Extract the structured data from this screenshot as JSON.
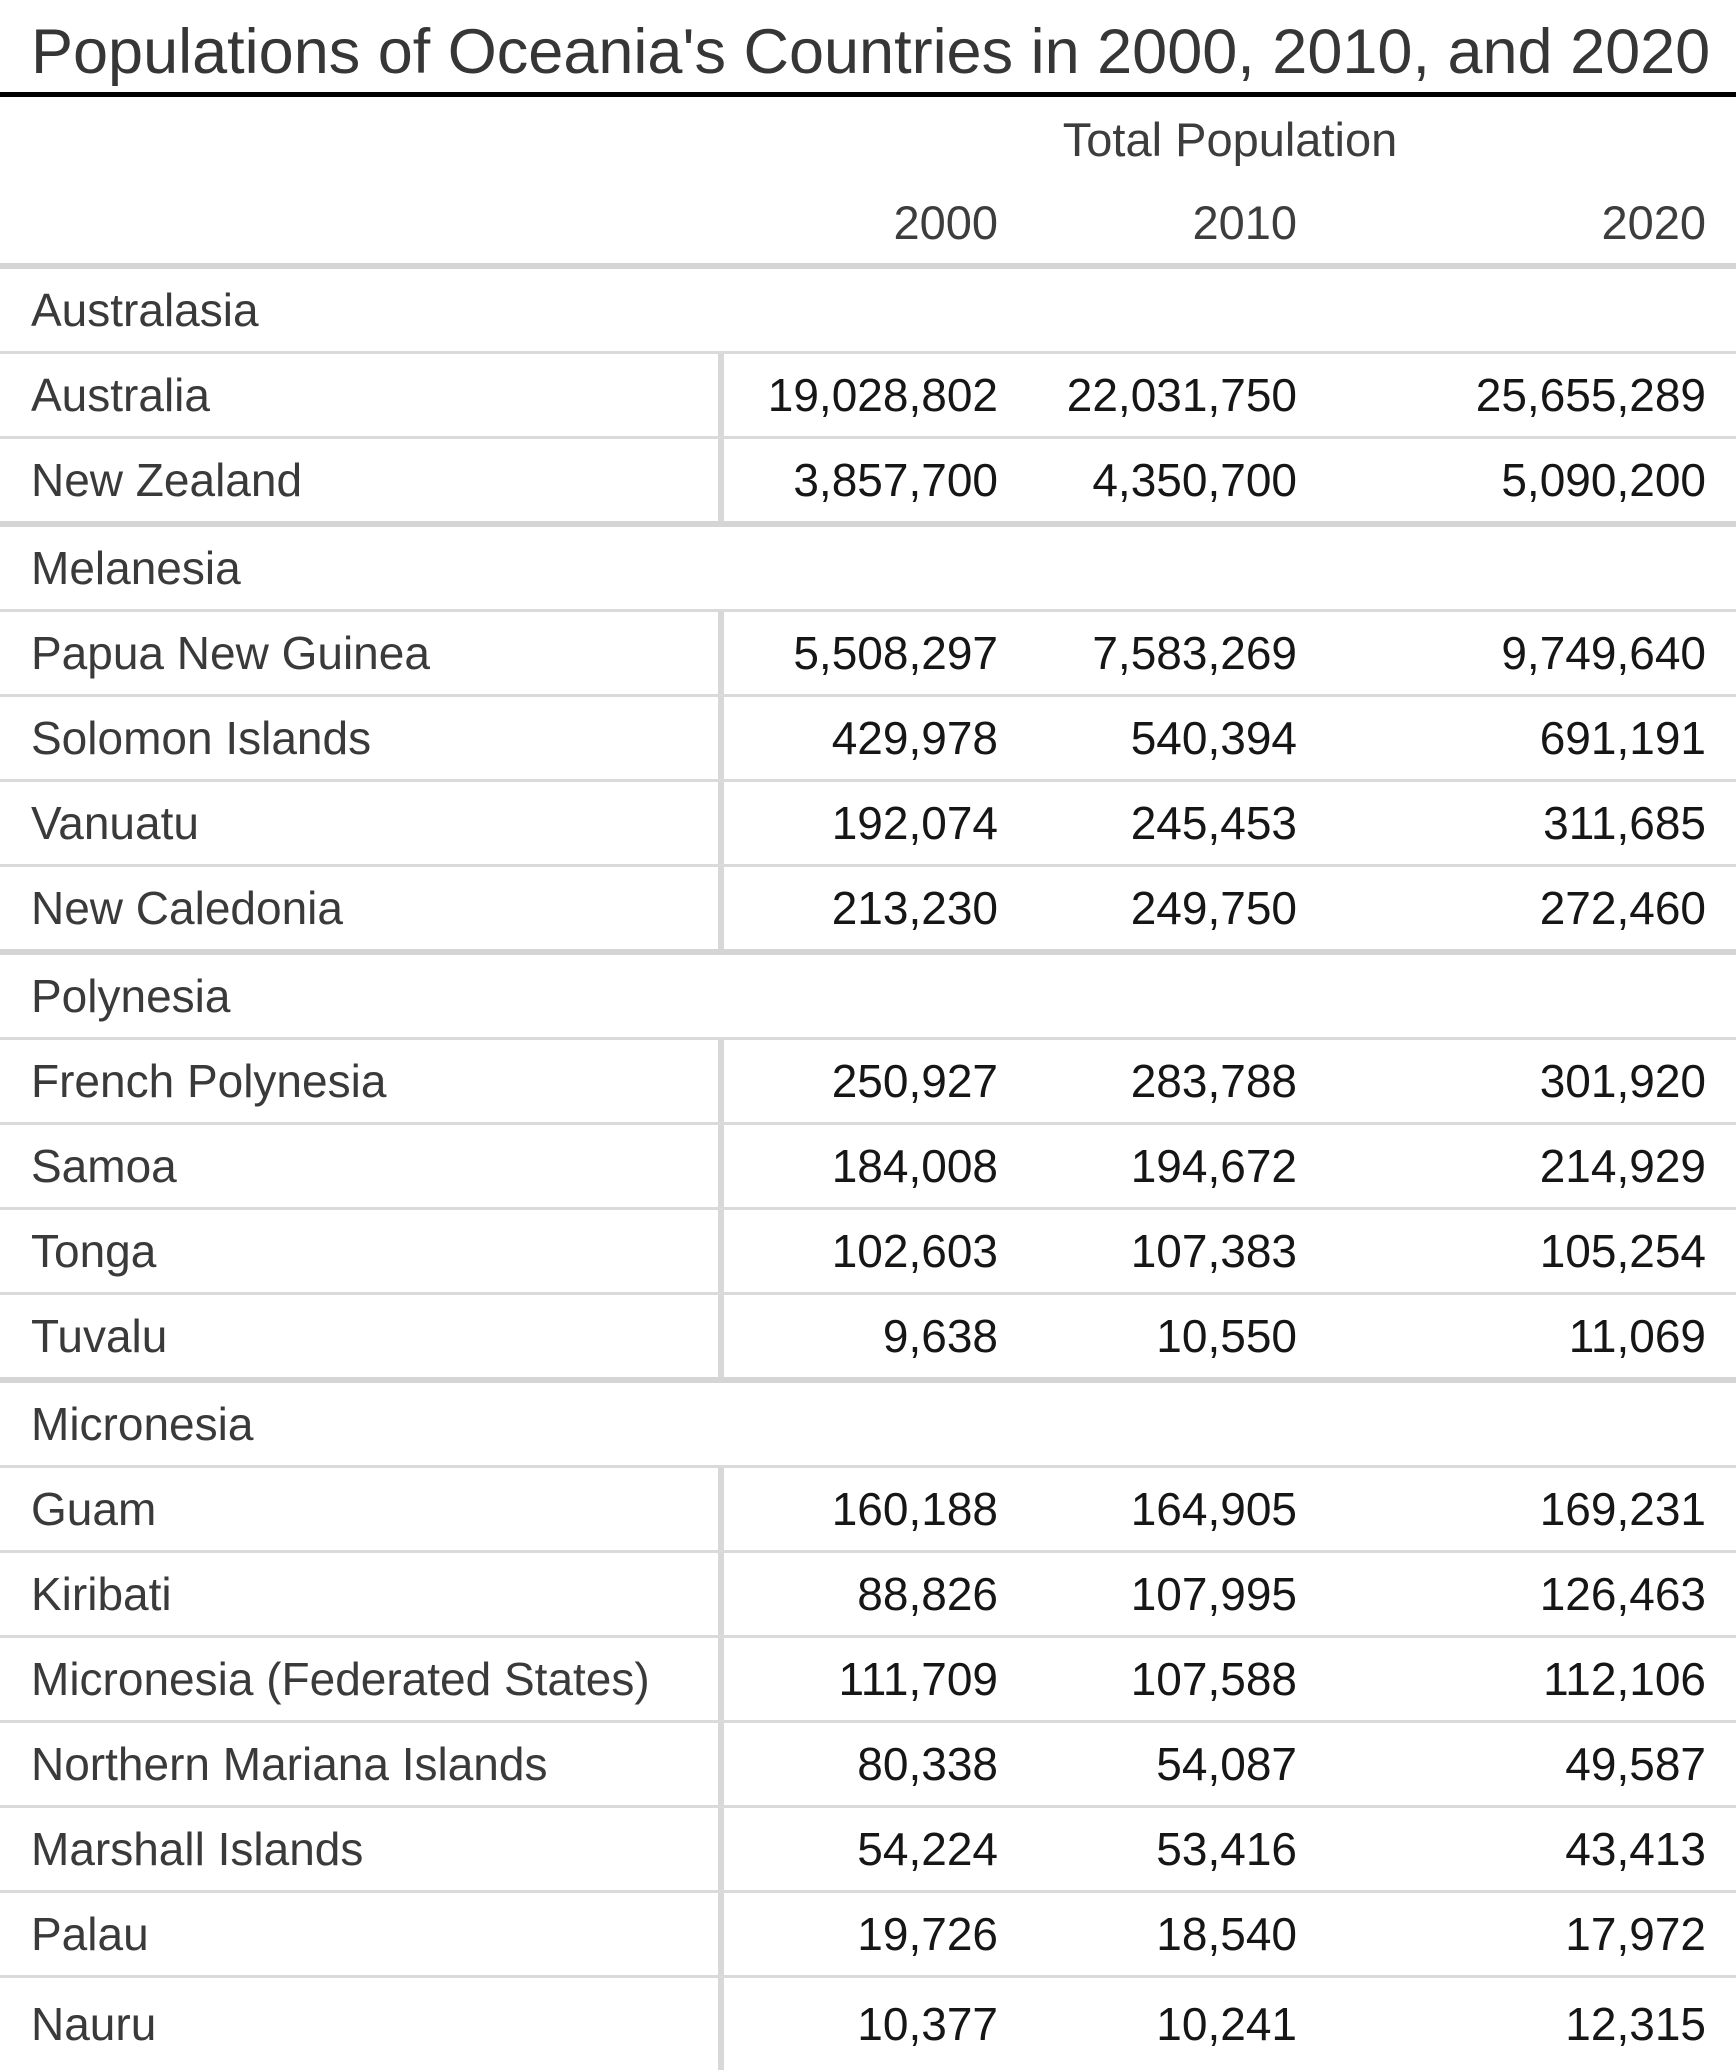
{
  "title": "Populations of Oceania's Countries in 2000, 2010, and 2020",
  "table": {
    "group_header": "Total Population",
    "years": [
      "2000",
      "2010",
      "2020"
    ],
    "sections": [
      {
        "name": "Australasia",
        "rows": [
          {
            "country": "Australia",
            "values": [
              "19,028,802",
              "22,031,750",
              "25,655,289"
            ]
          },
          {
            "country": "New Zealand",
            "values": [
              "3,857,700",
              "4,350,700",
              "5,090,200"
            ]
          }
        ]
      },
      {
        "name": "Melanesia",
        "rows": [
          {
            "country": "Papua New Guinea",
            "values": [
              "5,508,297",
              "7,583,269",
              "9,749,640"
            ]
          },
          {
            "country": "Solomon Islands",
            "values": [
              "429,978",
              "540,394",
              "691,191"
            ]
          },
          {
            "country": "Vanuatu",
            "values": [
              "192,074",
              "245,453",
              "311,685"
            ]
          },
          {
            "country": "New Caledonia",
            "values": [
              "213,230",
              "249,750",
              "272,460"
            ]
          }
        ]
      },
      {
        "name": "Polynesia",
        "rows": [
          {
            "country": "French Polynesia",
            "values": [
              "250,927",
              "283,788",
              "301,920"
            ]
          },
          {
            "country": "Samoa",
            "values": [
              "184,008",
              "194,672",
              "214,929"
            ]
          },
          {
            "country": "Tonga",
            "values": [
              "102,603",
              "107,383",
              "105,254"
            ]
          },
          {
            "country": "Tuvalu",
            "values": [
              "9,638",
              "10,550",
              "11,069"
            ]
          }
        ]
      },
      {
        "name": "Micronesia",
        "rows": [
          {
            "country": "Guam",
            "values": [
              "160,188",
              "164,905",
              "169,231"
            ]
          },
          {
            "country": "Kiribati",
            "values": [
              "88,826",
              "107,995",
              "126,463"
            ]
          },
          {
            "country": "Micronesia (Federated States)",
            "values": [
              "111,709",
              "107,588",
              "112,106"
            ]
          },
          {
            "country": "Northern Mariana Islands",
            "values": [
              "80,338",
              "54,087",
              "49,587"
            ]
          },
          {
            "country": "Marshall Islands",
            "values": [
              "54,224",
              "53,416",
              "43,413"
            ]
          },
          {
            "country": "Palau",
            "values": [
              "19,726",
              "18,540",
              "17,972"
            ]
          },
          {
            "country": "Nauru",
            "values": [
              "10,377",
              "10,241",
              "12,315"
            ]
          }
        ]
      }
    ]
  },
  "colors": {
    "label_text": "#3a3a3a",
    "number_text": "#161616",
    "header_text": "#3d3d3d",
    "title_rule": "#000000",
    "section_band": "#d5d5d5",
    "row_line": "#dadada",
    "column_divider": "#d8d8d8",
    "background": "#ffffff"
  },
  "chart_data": {
    "type": "table",
    "title": "Populations of Oceania's Countries in 2000, 2010, and 2020",
    "column_group": "Total Population",
    "columns": [
      "2000",
      "2010",
      "2020"
    ],
    "row_groups": [
      {
        "group": "Australasia",
        "rows": [
          {
            "label": "Australia",
            "values": [
              19028802,
              22031750,
              25655289
            ]
          },
          {
            "label": "New Zealand",
            "values": [
              3857700,
              4350700,
              5090200
            ]
          }
        ]
      },
      {
        "group": "Melanesia",
        "rows": [
          {
            "label": "Papua New Guinea",
            "values": [
              5508297,
              7583269,
              9749640
            ]
          },
          {
            "label": "Solomon Islands",
            "values": [
              429978,
              540394,
              691191
            ]
          },
          {
            "label": "Vanuatu",
            "values": [
              192074,
              245453,
              311685
            ]
          },
          {
            "label": "New Caledonia",
            "values": [
              213230,
              249750,
              272460
            ]
          }
        ]
      },
      {
        "group": "Polynesia",
        "rows": [
          {
            "label": "French Polynesia",
            "values": [
              250927,
              283788,
              301920
            ]
          },
          {
            "label": "Samoa",
            "values": [
              184008,
              194672,
              214929
            ]
          },
          {
            "label": "Tonga",
            "values": [
              102603,
              107383,
              105254
            ]
          },
          {
            "label": "Tuvalu",
            "values": [
              9638,
              10550,
              11069
            ]
          }
        ]
      },
      {
        "group": "Micronesia",
        "rows": [
          {
            "label": "Guam",
            "values": [
              160188,
              164905,
              169231
            ]
          },
          {
            "label": "Kiribati",
            "values": [
              88826,
              107995,
              126463
            ]
          },
          {
            "label": "Micronesia (Federated States)",
            "values": [
              111709,
              107588,
              112106
            ]
          },
          {
            "label": "Northern Mariana Islands",
            "values": [
              80338,
              54087,
              49587
            ]
          },
          {
            "label": "Marshall Islands",
            "values": [
              54224,
              53416,
              43413
            ]
          },
          {
            "label": "Palau",
            "values": [
              19726,
              18540,
              17972
            ]
          },
          {
            "label": "Nauru",
            "values": [
              10377,
              10241,
              12315
            ]
          }
        ]
      }
    ]
  }
}
